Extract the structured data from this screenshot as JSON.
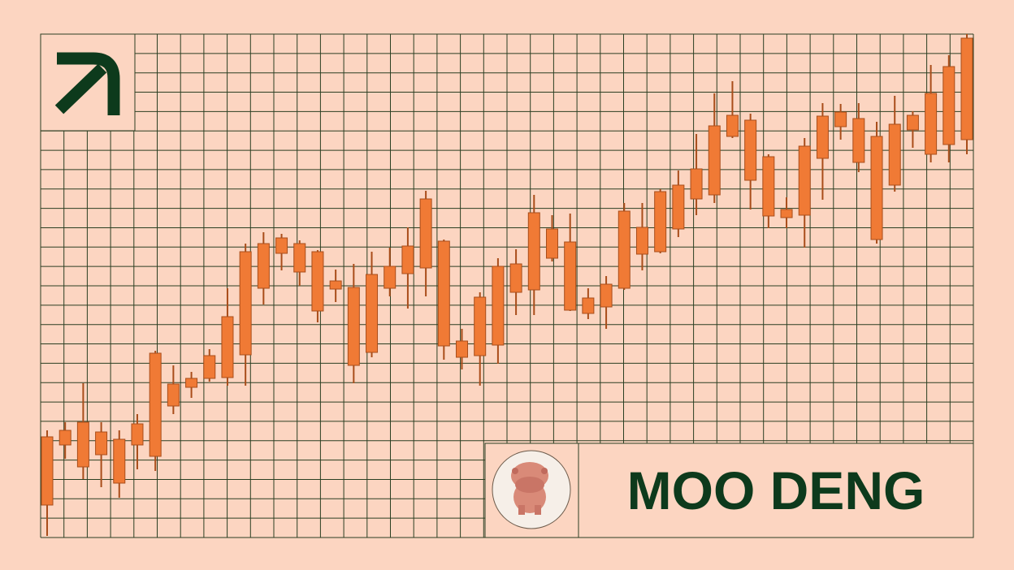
{
  "brand": {
    "name": "MOO DENG",
    "logo_icon": "arrow-up-right-icon",
    "mascot": "pygmy-hippo-avatar"
  },
  "colors": {
    "background": "#fcd5c1",
    "grid": "#2b3f22",
    "candle": "#f07a35",
    "candle_border": "#a94d1a",
    "text": "#0d3a1c",
    "avatar_bg": "#f6efe8"
  },
  "chart_data": {
    "type": "candlestick",
    "grid": true,
    "fields": [
      "high",
      "low",
      "body_top",
      "body_bottom"
    ],
    "candles": [
      [
        132,
        2,
        124,
        40
      ],
      [
        142,
        97,
        132,
        114
      ],
      [
        190,
        72,
        142,
        87
      ],
      [
        142,
        62,
        130,
        102
      ],
      [
        132,
        49,
        121,
        67
      ],
      [
        152,
        84,
        140,
        114
      ],
      [
        230,
        82,
        227,
        100
      ],
      [
        212,
        152,
        189,
        162
      ],
      [
        204,
        172,
        196,
        185
      ],
      [
        232,
        192,
        224,
        196
      ],
      [
        307,
        187,
        272,
        197
      ],
      [
        362,
        187,
        352,
        225
      ],
      [
        376,
        287,
        362,
        307
      ],
      [
        374,
        329,
        369,
        350
      ],
      [
        366,
        310,
        362,
        327
      ],
      [
        354,
        265,
        352,
        279
      ],
      [
        330,
        290,
        316,
        306
      ],
      [
        337,
        190,
        308,
        212
      ],
      [
        352,
        222,
        324,
        228
      ],
      [
        357,
        297,
        334,
        307
      ],
      [
        382,
        282,
        359,
        325
      ],
      [
        427,
        297,
        417,
        332
      ],
      [
        367,
        219,
        365,
        236
      ],
      [
        257,
        207,
        242,
        222
      ],
      [
        302,
        187,
        296,
        224
      ],
      [
        344,
        214,
        334,
        237
      ],
      [
        355,
        274,
        337,
        302
      ],
      [
        422,
        274,
        400,
        305
      ],
      [
        397,
        340,
        380,
        344
      ],
      [
        399,
        279,
        364,
        280
      ],
      [
        307,
        269,
        295,
        276
      ],
      [
        322,
        257,
        312,
        284
      ],
      [
        412,
        305,
        402,
        307
      ],
      [
        412,
        329,
        382,
        349
      ],
      [
        429,
        350,
        426,
        352
      ],
      [
        452,
        370,
        434,
        380
      ],
      [
        497,
        397,
        454,
        417
      ],
      [
        547,
        412,
        507,
        422
      ],
      [
        562,
        492,
        520,
        494
      ],
      [
        522,
        404,
        514,
        440
      ],
      [
        472,
        381,
        469,
        396
      ],
      [
        419,
        381,
        404,
        394
      ],
      [
        492,
        357,
        482,
        397
      ],
      [
        535,
        416,
        519,
        467
      ],
      [
        534,
        490,
        524,
        506
      ],
      [
        535,
        450,
        516,
        462
      ],
      [
        512,
        362,
        494,
        367
      ],
      [
        544,
        426,
        509,
        434
      ],
      [
        525,
        480,
        520,
        502
      ],
      [
        582,
        462,
        547,
        472
      ],
      [
        594,
        462,
        580,
        484
      ],
      [
        620,
        472,
        615,
        490
      ]
    ]
  }
}
